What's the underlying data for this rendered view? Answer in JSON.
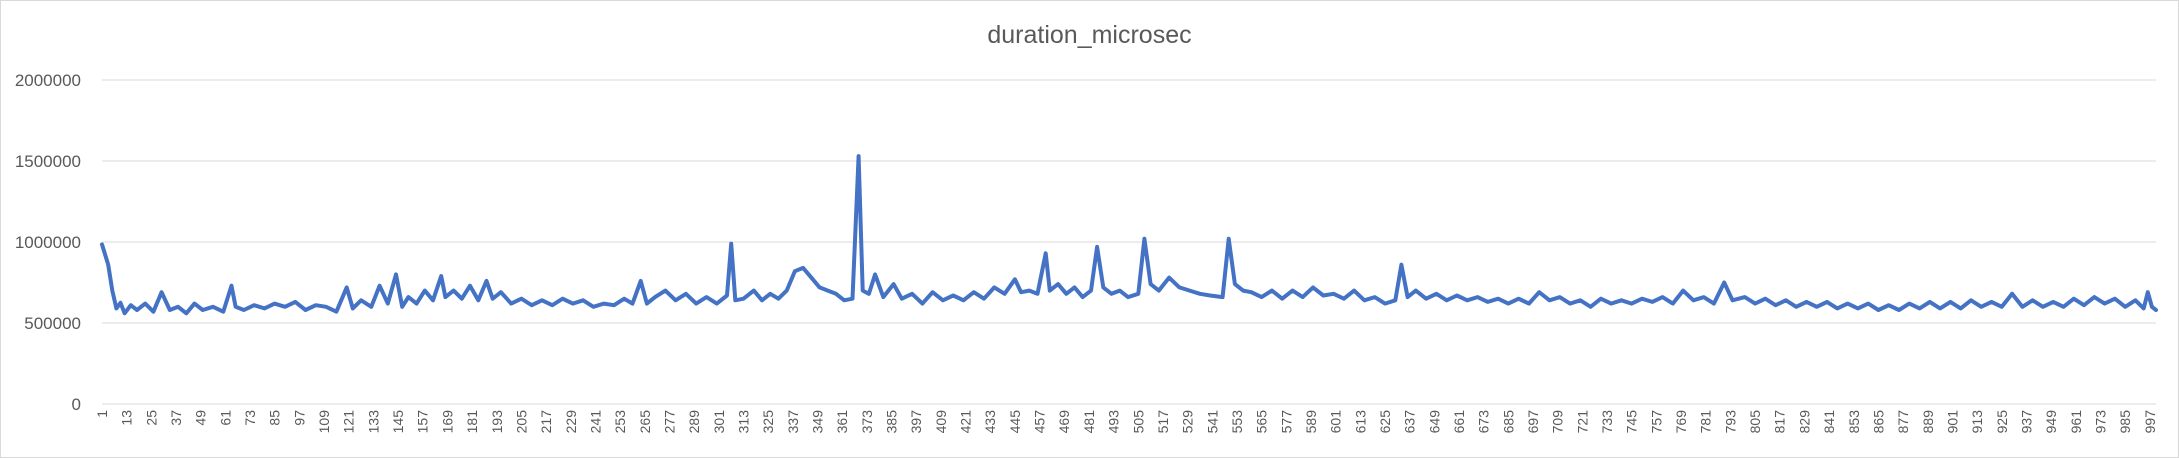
{
  "chart_data": {
    "type": "line",
    "title": "duration_microsec",
    "xlabel": "",
    "ylabel": "",
    "ylim": [
      0,
      2000000
    ],
    "yticks": [
      "0",
      "500000",
      "1000000",
      "1500000",
      "2000000"
    ],
    "xticks": [
      "1",
      "13",
      "25",
      "37",
      "49",
      "61",
      "73",
      "85",
      "97",
      "109",
      "121",
      "133",
      "145",
      "157",
      "169",
      "181",
      "193",
      "205",
      "217",
      "229",
      "241",
      "253",
      "265",
      "277",
      "289",
      "301",
      "313",
      "325",
      "337",
      "349",
      "361",
      "373",
      "385",
      "397",
      "409",
      "421",
      "433",
      "445",
      "457",
      "469",
      "481",
      "493",
      "505",
      "517",
      "529",
      "541",
      "553",
      "565",
      "577",
      "589",
      "601",
      "613",
      "625",
      "637",
      "649",
      "661",
      "673",
      "685",
      "697",
      "709",
      "721",
      "733",
      "745",
      "757",
      "769",
      "781",
      "793",
      "805",
      "817",
      "829",
      "841",
      "853",
      "865",
      "877",
      "889",
      "901",
      "913",
      "925",
      "937",
      "949",
      "961",
      "973",
      "985",
      "997"
    ],
    "x_range": [
      1,
      1000
    ],
    "grid": true,
    "legend": "none",
    "color": "#4472c4",
    "series": [
      {
        "points": [
          [
            1,
            985000
          ],
          [
            4,
            860000
          ],
          [
            6,
            700000
          ],
          [
            8,
            590000
          ],
          [
            10,
            625000
          ],
          [
            12,
            560000
          ],
          [
            15,
            610000
          ],
          [
            18,
            580000
          ],
          [
            22,
            620000
          ],
          [
            26,
            570000
          ],
          [
            30,
            690000
          ],
          [
            34,
            580000
          ],
          [
            38,
            600000
          ],
          [
            42,
            560000
          ],
          [
            46,
            620000
          ],
          [
            50,
            580000
          ],
          [
            55,
            600000
          ],
          [
            60,
            570000
          ],
          [
            64,
            730000
          ],
          [
            66,
            600000
          ],
          [
            70,
            580000
          ],
          [
            75,
            610000
          ],
          [
            80,
            590000
          ],
          [
            85,
            620000
          ],
          [
            90,
            600000
          ],
          [
            95,
            630000
          ],
          [
            100,
            580000
          ],
          [
            105,
            610000
          ],
          [
            110,
            600000
          ],
          [
            115,
            570000
          ],
          [
            120,
            720000
          ],
          [
            123,
            590000
          ],
          [
            127,
            640000
          ],
          [
            132,
            600000
          ],
          [
            136,
            730000
          ],
          [
            140,
            620000
          ],
          [
            144,
            800000
          ],
          [
            147,
            600000
          ],
          [
            150,
            660000
          ],
          [
            154,
            620000
          ],
          [
            158,
            700000
          ],
          [
            162,
            640000
          ],
          [
            166,
            790000
          ],
          [
            168,
            660000
          ],
          [
            172,
            700000
          ],
          [
            176,
            650000
          ],
          [
            180,
            730000
          ],
          [
            184,
            640000
          ],
          [
            188,
            760000
          ],
          [
            191,
            650000
          ],
          [
            195,
            690000
          ],
          [
            200,
            620000
          ],
          [
            205,
            650000
          ],
          [
            210,
            610000
          ],
          [
            215,
            640000
          ],
          [
            220,
            610000
          ],
          [
            225,
            650000
          ],
          [
            230,
            620000
          ],
          [
            235,
            640000
          ],
          [
            240,
            600000
          ],
          [
            245,
            620000
          ],
          [
            250,
            610000
          ],
          [
            255,
            650000
          ],
          [
            259,
            620000
          ],
          [
            263,
            760000
          ],
          [
            266,
            620000
          ],
          [
            270,
            660000
          ],
          [
            275,
            700000
          ],
          [
            280,
            640000
          ],
          [
            285,
            680000
          ],
          [
            290,
            620000
          ],
          [
            295,
            660000
          ],
          [
            300,
            620000
          ],
          [
            305,
            670000
          ],
          [
            307,
            990000
          ],
          [
            309,
            640000
          ],
          [
            313,
            650000
          ],
          [
            318,
            700000
          ],
          [
            322,
            640000
          ],
          [
            326,
            680000
          ],
          [
            330,
            650000
          ],
          [
            334,
            700000
          ],
          [
            338,
            820000
          ],
          [
            342,
            840000
          ],
          [
            346,
            780000
          ],
          [
            350,
            720000
          ],
          [
            354,
            700000
          ],
          [
            358,
            680000
          ],
          [
            362,
            640000
          ],
          [
            366,
            650000
          ],
          [
            369,
            1530000
          ],
          [
            371,
            700000
          ],
          [
            374,
            680000
          ],
          [
            377,
            800000
          ],
          [
            381,
            660000
          ],
          [
            386,
            740000
          ],
          [
            390,
            650000
          ],
          [
            395,
            680000
          ],
          [
            400,
            620000
          ],
          [
            405,
            690000
          ],
          [
            410,
            640000
          ],
          [
            415,
            670000
          ],
          [
            420,
            640000
          ],
          [
            425,
            690000
          ],
          [
            430,
            650000
          ],
          [
            435,
            720000
          ],
          [
            440,
            680000
          ],
          [
            445,
            770000
          ],
          [
            448,
            690000
          ],
          [
            452,
            700000
          ],
          [
            456,
            680000
          ],
          [
            460,
            930000
          ],
          [
            462,
            700000
          ],
          [
            466,
            740000
          ],
          [
            470,
            680000
          ],
          [
            474,
            720000
          ],
          [
            478,
            660000
          ],
          [
            482,
            700000
          ],
          [
            485,
            970000
          ],
          [
            488,
            720000
          ],
          [
            492,
            680000
          ],
          [
            496,
            700000
          ],
          [
            500,
            660000
          ],
          [
            505,
            680000
          ],
          [
            508,
            1020000
          ],
          [
            511,
            740000
          ],
          [
            515,
            700000
          ],
          [
            520,
            780000
          ],
          [
            525,
            720000
          ],
          [
            530,
            700000
          ],
          [
            535,
            680000
          ],
          [
            540,
            670000
          ],
          [
            546,
            660000
          ],
          [
            549,
            1020000
          ],
          [
            552,
            740000
          ],
          [
            556,
            700000
          ],
          [
            560,
            690000
          ],
          [
            565,
            660000
          ],
          [
            570,
            700000
          ],
          [
            575,
            650000
          ],
          [
            580,
            700000
          ],
          [
            585,
            660000
          ],
          [
            590,
            720000
          ],
          [
            595,
            670000
          ],
          [
            600,
            680000
          ],
          [
            605,
            650000
          ],
          [
            610,
            700000
          ],
          [
            615,
            640000
          ],
          [
            620,
            660000
          ],
          [
            625,
            620000
          ],
          [
            630,
            640000
          ],
          [
            633,
            860000
          ],
          [
            636,
            660000
          ],
          [
            640,
            700000
          ],
          [
            645,
            650000
          ],
          [
            650,
            680000
          ],
          [
            655,
            640000
          ],
          [
            660,
            670000
          ],
          [
            665,
            640000
          ],
          [
            670,
            660000
          ],
          [
            675,
            630000
          ],
          [
            680,
            650000
          ],
          [
            685,
            620000
          ],
          [
            690,
            650000
          ],
          [
            695,
            620000
          ],
          [
            700,
            690000
          ],
          [
            705,
            640000
          ],
          [
            710,
            660000
          ],
          [
            715,
            620000
          ],
          [
            720,
            640000
          ],
          [
            725,
            600000
          ],
          [
            730,
            650000
          ],
          [
            735,
            620000
          ],
          [
            740,
            640000
          ],
          [
            745,
            620000
          ],
          [
            750,
            650000
          ],
          [
            755,
            630000
          ],
          [
            760,
            660000
          ],
          [
            765,
            620000
          ],
          [
            770,
            700000
          ],
          [
            775,
            640000
          ],
          [
            780,
            660000
          ],
          [
            785,
            620000
          ],
          [
            790,
            750000
          ],
          [
            794,
            640000
          ],
          [
            800,
            660000
          ],
          [
            805,
            620000
          ],
          [
            810,
            650000
          ],
          [
            815,
            610000
          ],
          [
            820,
            640000
          ],
          [
            825,
            600000
          ],
          [
            830,
            630000
          ],
          [
            835,
            600000
          ],
          [
            840,
            630000
          ],
          [
            845,
            590000
          ],
          [
            850,
            620000
          ],
          [
            855,
            590000
          ],
          [
            860,
            620000
          ],
          [
            865,
            580000
          ],
          [
            870,
            610000
          ],
          [
            875,
            580000
          ],
          [
            880,
            620000
          ],
          [
            885,
            590000
          ],
          [
            890,
            630000
          ],
          [
            895,
            590000
          ],
          [
            900,
            630000
          ],
          [
            905,
            590000
          ],
          [
            910,
            640000
          ],
          [
            915,
            600000
          ],
          [
            920,
            630000
          ],
          [
            925,
            600000
          ],
          [
            930,
            680000
          ],
          [
            935,
            600000
          ],
          [
            940,
            640000
          ],
          [
            945,
            600000
          ],
          [
            950,
            630000
          ],
          [
            955,
            600000
          ],
          [
            960,
            650000
          ],
          [
            965,
            610000
          ],
          [
            970,
            660000
          ],
          [
            975,
            620000
          ],
          [
            980,
            650000
          ],
          [
            985,
            600000
          ],
          [
            990,
            640000
          ],
          [
            994,
            590000
          ],
          [
            996,
            690000
          ],
          [
            998,
            600000
          ],
          [
            1000,
            580000
          ]
        ]
      }
    ]
  }
}
